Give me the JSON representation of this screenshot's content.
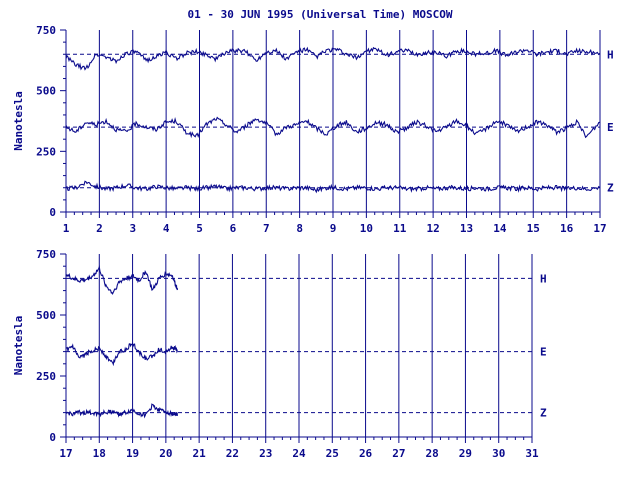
{
  "chart_data": {
    "type": "line",
    "title": "01 - 30 JUN 1995 (Universal Time) MOSCOW",
    "ylabel": "Nanotesla",
    "panels": [
      {
        "xlim": [
          1,
          17
        ],
        "x_ticks": [
          "1",
          "2",
          "3",
          "4",
          "5",
          "6",
          "7",
          "8",
          "9",
          "10",
          "11",
          "12",
          "13",
          "14",
          "15",
          "16",
          "17"
        ],
        "ylim": [
          0,
          750
        ],
        "y_ticks": [
          "0",
          "250",
          "500",
          "750"
        ],
        "series": [
          {
            "name": "H",
            "baseline": 650,
            "x": [
              1,
              1.3,
              1.6,
              1.9,
              2.2,
              2.5,
              2.8,
              3.1,
              3.4,
              3.7,
              4.0,
              4.3,
              4.6,
              4.9,
              5.2,
              5.5,
              5.8,
              6.1,
              6.4,
              6.7,
              7.0,
              7.3,
              7.6,
              7.9,
              8.2,
              8.5,
              8.8,
              9.1,
              9.4,
              9.7,
              10.0,
              10.3,
              10.6,
              10.9,
              11.2,
              11.5,
              11.8,
              12.1,
              12.4,
              12.7,
              13.0,
              13.3,
              13.6,
              13.9,
              14.2,
              14.5,
              14.8,
              15.1,
              15.4,
              15.7,
              16.0,
              16.3,
              16.6,
              17.0
            ],
            "y": [
              640,
              605,
              590,
              650,
              640,
              620,
              655,
              660,
              625,
              640,
              660,
              630,
              655,
              660,
              650,
              630,
              660,
              665,
              660,
              625,
              660,
              665,
              630,
              660,
              670,
              640,
              665,
              670,
              650,
              635,
              665,
              670,
              645,
              660,
              665,
              650,
              655,
              660,
              640,
              665,
              660,
              650,
              655,
              665,
              645,
              660,
              670,
              650,
              660,
              665,
              650,
              665,
              660,
              655
            ]
          },
          {
            "name": "E",
            "baseline": 350,
            "x": [
              1,
              1.3,
              1.6,
              1.9,
              2.2,
              2.5,
              2.8,
              3.1,
              3.4,
              3.7,
              4.0,
              4.3,
              4.6,
              4.9,
              5.2,
              5.5,
              5.8,
              6.1,
              6.4,
              6.7,
              7.0,
              7.3,
              7.6,
              7.9,
              8.2,
              8.5,
              8.8,
              9.1,
              9.4,
              9.7,
              10.0,
              10.3,
              10.6,
              10.9,
              11.2,
              11.5,
              11.8,
              12.1,
              12.4,
              12.7,
              13.0,
              13.3,
              13.6,
              13.9,
              14.2,
              14.5,
              14.8,
              15.1,
              15.4,
              15.7,
              16.0,
              16.3,
              16.6,
              17.0
            ],
            "y": [
              350,
              330,
              370,
              360,
              375,
              340,
              330,
              365,
              350,
              340,
              370,
              375,
              330,
              310,
              360,
              385,
              360,
              330,
              355,
              385,
              365,
              320,
              350,
              360,
              375,
              345,
              320,
              355,
              370,
              330,
              345,
              370,
              360,
              330,
              345,
              370,
              355,
              330,
              350,
              375,
              355,
              320,
              345,
              375,
              360,
              330,
              350,
              370,
              360,
              330,
              345,
              370,
              310,
              370
            ]
          },
          {
            "name": "Z",
            "baseline": 100,
            "x": [
              1,
              1.3,
              1.6,
              1.9,
              2.2,
              2.5,
              2.8,
              3.1,
              3.4,
              3.7,
              4.0,
              4.3,
              4.6,
              4.9,
              5.2,
              5.5,
              5.8,
              6.1,
              6.4,
              6.7,
              7.0,
              7.3,
              7.6,
              7.9,
              8.2,
              8.5,
              8.8,
              9.1,
              9.4,
              9.7,
              10.0,
              10.3,
              10.6,
              10.9,
              11.2,
              11.5,
              11.8,
              12.1,
              12.4,
              12.7,
              13.0,
              13.3,
              13.6,
              13.9,
              14.2,
              14.5,
              14.8,
              15.1,
              15.4,
              15.7,
              16.0,
              16.3,
              16.6,
              17.0
            ],
            "y": [
              95,
              100,
              125,
              105,
              95,
              100,
              110,
              100,
              95,
              105,
              100,
              95,
              100,
              95,
              100,
              105,
              95,
              100,
              100,
              95,
              100,
              100,
              95,
              100,
              100,
              90,
              100,
              100,
              95,
              100,
              100,
              95,
              100,
              100,
              95,
              95,
              100,
              95,
              100,
              100,
              95,
              100,
              95,
              100,
              100,
              95,
              100,
              95,
              100,
              100,
              95,
              100,
              95,
              100
            ]
          }
        ]
      },
      {
        "xlim": [
          17,
          31
        ],
        "x_ticks": [
          "17",
          "18",
          "19",
          "20",
          "21",
          "22",
          "23",
          "24",
          "25",
          "26",
          "27",
          "28",
          "29",
          "30",
          "31"
        ],
        "ylim": [
          0,
          750
        ],
        "y_ticks": [
          "0",
          "250",
          "500",
          "750"
        ],
        "series": [
          {
            "name": "H",
            "baseline": 650,
            "x": [
              17,
              17.2,
              17.4,
              17.6,
              17.8,
              18.0,
              18.2,
              18.4,
              18.6,
              18.8,
              19.0,
              19.2,
              19.4,
              19.6,
              19.8,
              20.0,
              20.2,
              20.3,
              20.35
            ],
            "y": [
              665,
              650,
              640,
              645,
              660,
              690,
              620,
              590,
              635,
              650,
              660,
              640,
              680,
              600,
              650,
              670,
              660,
              620,
              610
            ]
          },
          {
            "name": "E",
            "baseline": 350,
            "x": [
              17,
              17.2,
              17.4,
              17.6,
              17.8,
              18.0,
              18.2,
              18.4,
              18.6,
              18.8,
              19.0,
              19.2,
              19.4,
              19.6,
              19.8,
              20.0,
              20.2,
              20.3,
              20.35
            ],
            "y": [
              355,
              370,
              320,
              340,
              355,
              365,
              330,
              300,
              350,
              360,
              385,
              345,
              320,
              330,
              360,
              350,
              370,
              360,
              355
            ]
          },
          {
            "name": "Z",
            "baseline": 100,
            "x": [
              17,
              17.2,
              17.4,
              17.6,
              17.8,
              18.0,
              18.2,
              18.4,
              18.6,
              18.8,
              19.0,
              19.2,
              19.4,
              19.6,
              19.8,
              20.0,
              20.2,
              20.3,
              20.35
            ],
            "y": [
              98,
              95,
              100,
              100,
              100,
              95,
              100,
              105,
              95,
              100,
              110,
              95,
              90,
              130,
              110,
              105,
              95,
              95,
              92
            ]
          }
        ]
      }
    ]
  },
  "colors": {
    "line": "#0a0a8c",
    "axis": "#0a0a8c"
  }
}
